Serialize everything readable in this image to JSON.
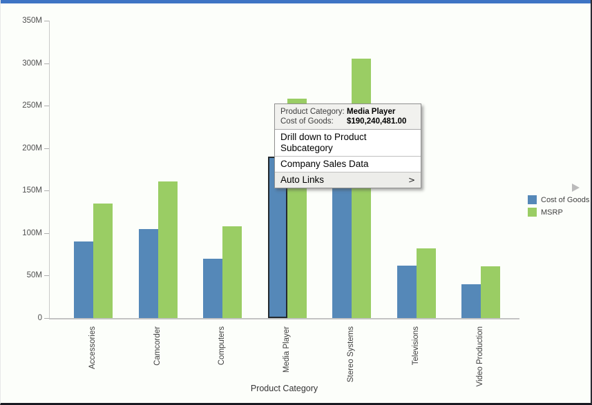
{
  "chart_data": {
    "type": "bar",
    "title": "",
    "xlabel": "Product Category",
    "ylabel": "",
    "categories": [
      "Accessories",
      "Camcorder",
      "Computers",
      "Media Player",
      "Stereo Systems",
      "Televisions",
      "Video Production"
    ],
    "series": [
      {
        "name": "Cost of Goods",
        "color": "#5588B8",
        "values": [
          90,
          105,
          70,
          190.24,
          175,
          62,
          40
        ]
      },
      {
        "name": "MSRP",
        "color": "#9ACD64",
        "values": [
          135,
          161,
          108,
          258,
          305,
          82,
          61
        ]
      }
    ],
    "ylim": [
      0,
      350
    ],
    "y_tick_values": [
      0,
      50,
      100,
      150,
      200,
      250,
      300,
      350
    ],
    "y_tick_labels": [
      "0",
      "50M",
      "100M",
      "150M",
      "200M",
      "250M",
      "300M",
      "350M"
    ],
    "grid": false,
    "legend_position": "right",
    "selected_bar": {
      "series": "Cost of Goods",
      "category": "Media Player"
    }
  },
  "tooltip": {
    "rows": [
      {
        "label": "Product Category:",
        "value": "Media Player"
      },
      {
        "label": "Cost of Goods:",
        "value": "$190,240,481.00"
      }
    ]
  },
  "context_menu": {
    "items": [
      {
        "label": "Drill down to Product Subcategory",
        "has_submenu": false
      },
      {
        "label": "Company Sales Data",
        "has_submenu": false
      },
      {
        "label": "Auto Links",
        "has_submenu": true
      }
    ],
    "submenu_arrow": ">"
  },
  "legend": {
    "items": [
      {
        "label": "Cost of Goods",
        "color": "#5588B8"
      },
      {
        "label": "MSRP",
        "color": "#9ACD64"
      }
    ]
  },
  "colors": {
    "accent_bar": "#3E74C4",
    "bar_blue": "#5588B8",
    "bar_green": "#9ACD64",
    "selection_outline": "#23292E",
    "axis_line": "#C9C9C9",
    "pager_arrow": "#BBBBBB"
  }
}
